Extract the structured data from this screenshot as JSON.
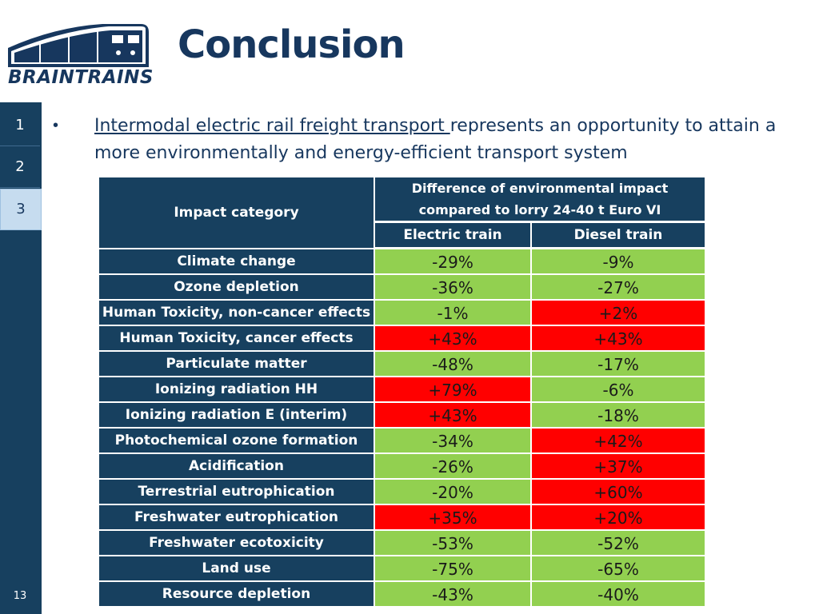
{
  "logo": {
    "text": "BRAINTRAINS"
  },
  "title": "Conclusion",
  "sidebar": {
    "tabs": [
      "1",
      "2",
      "3"
    ],
    "active_index": 2,
    "page_number": "13"
  },
  "bullet": {
    "marker": "•",
    "link_text": "Intermodal electric rail freight transport ",
    "rest_text": "represents an opportunity to attain a more environmentally and energy-efficient transport system"
  },
  "table": {
    "header_category": "Impact category",
    "header_group": "Difference of environmental impact compared to lorry 24-40 t Euro VI",
    "header_cols": [
      "Electric train",
      "Diesel train"
    ],
    "colors": {
      "green": "#92d050",
      "red": "#ff0000",
      "navy": "#17405f"
    },
    "rows": [
      {
        "category": "Climate change",
        "electric": "-29%",
        "diesel": "-9%",
        "electric_color": "green",
        "diesel_color": "green"
      },
      {
        "category": "Ozone depletion",
        "electric": "-36%",
        "diesel": "-27%",
        "electric_color": "green",
        "diesel_color": "green"
      },
      {
        "category": "Human Toxicity, non-cancer effects",
        "electric": "-1%",
        "diesel": "+2%",
        "electric_color": "green",
        "diesel_color": "red"
      },
      {
        "category": "Human Toxicity, cancer effects",
        "electric": "+43%",
        "diesel": "+43%",
        "electric_color": "red",
        "diesel_color": "red"
      },
      {
        "category": "Particulate matter",
        "electric": "-48%",
        "diesel": "-17%",
        "electric_color": "green",
        "diesel_color": "green"
      },
      {
        "category": "Ionizing radiation HH",
        "electric": "+79%",
        "diesel": "-6%",
        "electric_color": "red",
        "diesel_color": "green"
      },
      {
        "category": "Ionizing radiation E (interim)",
        "electric": "+43%",
        "diesel": "-18%",
        "electric_color": "red",
        "diesel_color": "green"
      },
      {
        "category": "Photochemical ozone formation",
        "electric": "-34%",
        "diesel": "+42%",
        "electric_color": "green",
        "diesel_color": "red"
      },
      {
        "category": "Acidification",
        "electric": "-26%",
        "diesel": "+37%",
        "electric_color": "green",
        "diesel_color": "red"
      },
      {
        "category": "Terrestrial eutrophication",
        "electric": "-20%",
        "diesel": "+60%",
        "electric_color": "green",
        "diesel_color": "red"
      },
      {
        "category": "Freshwater eutrophication",
        "electric": "+35%",
        "diesel": "+20%",
        "electric_color": "red",
        "diesel_color": "red"
      },
      {
        "category": "Freshwater ecotoxicity",
        "electric": "-53%",
        "diesel": "-52%",
        "electric_color": "green",
        "diesel_color": "green"
      },
      {
        "category": "Land use",
        "electric": "-75%",
        "diesel": "-65%",
        "electric_color": "green",
        "diesel_color": "green"
      },
      {
        "category": "Resource depletion",
        "electric": "-43%",
        "diesel": "-40%",
        "electric_color": "green",
        "diesel_color": "green"
      }
    ]
  }
}
